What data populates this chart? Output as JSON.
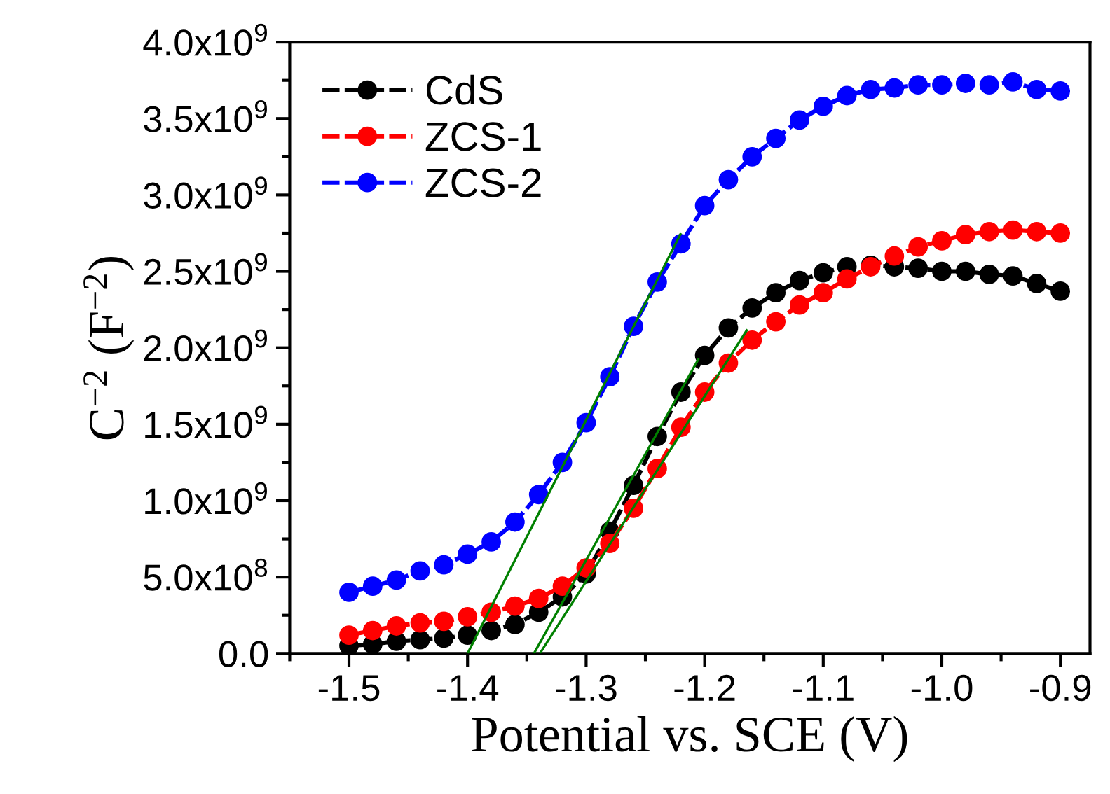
{
  "chart_data": {
    "type": "line",
    "xlabel": "Potential vs. SCE (V)",
    "ylabel": "C$^{−2}$ (F$^{−2}$)",
    "xlim": [
      -1.55,
      -0.875
    ],
    "xticks": [
      -1.5,
      -1.4,
      -1.3,
      -1.2,
      -1.1,
      {
        "value": -1.0,
        "label": "-1.0"
      },
      -0.9
    ],
    "ylim": [
      0,
      4000000000
    ],
    "yticks": [
      {
        "value": 0,
        "label": "0.0"
      },
      {
        "value": 500000000,
        "label": "5.0x10$^{8}$"
      },
      {
        "value": 1000000000,
        "label": "1.0x10$^{9}$"
      },
      {
        "value": 1500000000,
        "label": "1.5x10$^{9}$"
      },
      {
        "value": 2000000000,
        "label": "2.0x10$^{9}$"
      },
      {
        "value": 2500000000,
        "label": "2.5x10$^{9}$"
      },
      {
        "value": 3000000000,
        "label": "3.0x10$^{9}$"
      },
      {
        "value": 3500000000,
        "label": "3.5x10$^{9}$"
      },
      {
        "value": 4000000000,
        "label": "4.0x10$^{9}$"
      }
    ],
    "x": [
      -1.5,
      -1.48,
      -1.46,
      -1.44,
      -1.42,
      -1.4,
      -1.38,
      -1.36,
      -1.34,
      -1.32,
      -1.3,
      -1.28,
      -1.26,
      -1.24,
      -1.22,
      -1.2,
      -1.18,
      -1.16,
      -1.14,
      -1.12,
      -1.1,
      -1.08,
      -1.06,
      -1.04,
      -1.02,
      -1.0,
      -0.98,
      -0.96,
      -0.94,
      -0.92,
      -0.9
    ],
    "grid": false,
    "legend": "top left",
    "marker": "circle",
    "line_style": "dashed",
    "series": [
      {
        "name": "CdS",
        "color": "#000000",
        "values": [
          50000000,
          60000000,
          80000000,
          90000000,
          100000000,
          120000000,
          150000000,
          190000000,
          270000000,
          370000000,
          520000000,
          800000000,
          1100000000,
          1420000000,
          1710000000,
          1950000000,
          2130000000,
          2260000000,
          2360000000,
          2440000000,
          2490000000,
          2530000000,
          2540000000,
          2530000000,
          2520000000,
          2500000000,
          2500000000,
          2480000000,
          2470000000,
          2420000000,
          2370000000
        ]
      },
      {
        "name": "ZCS-1",
        "color": "#ff0000",
        "values": [
          120000000,
          150000000,
          180000000,
          200000000,
          210000000,
          240000000,
          270000000,
          310000000,
          360000000,
          440000000,
          560000000,
          720000000,
          950000000,
          1210000000,
          1480000000,
          1710000000,
          1900000000,
          2050000000,
          2170000000,
          2280000000,
          2360000000,
          2450000000,
          2530000000,
          2600000000,
          2660000000,
          2700000000,
          2740000000,
          2760000000,
          2770000000,
          2760000000,
          2750000000
        ]
      },
      {
        "name": "ZCS-2",
        "color": "#0000ff",
        "values": [
          400000000,
          440000000,
          480000000,
          540000000,
          580000000,
          650000000,
          730000000,
          860000000,
          1040000000,
          1250000000,
          1510000000,
          1810000000,
          2140000000,
          2430000000,
          2680000000,
          2930000000,
          3100000000,
          3250000000,
          3370000000,
          3490000000,
          3580000000,
          3650000000,
          3690000000,
          3700000000,
          3720000000,
          3720000000,
          3730000000,
          3720000000,
          3740000000,
          3690000000,
          3680000000
        ]
      },
      {
        "color": "#008000",
        "x": [
          -1.4,
          -1.22
        ],
        "values": [
          0,
          2750000000
        ],
        "marker": "none",
        "line_style": "solid"
      },
      {
        "color": "#008000",
        "x": [
          -1.344,
          -1.205
        ],
        "values": [
          0,
          1930000000
        ],
        "marker": "none",
        "line_style": "solid"
      },
      {
        "color": "#008000",
        "x": [
          -1.339,
          -1.164
        ],
        "values": [
          0,
          2120000000
        ],
        "marker": "none",
        "line_style": "solid"
      }
    ]
  }
}
